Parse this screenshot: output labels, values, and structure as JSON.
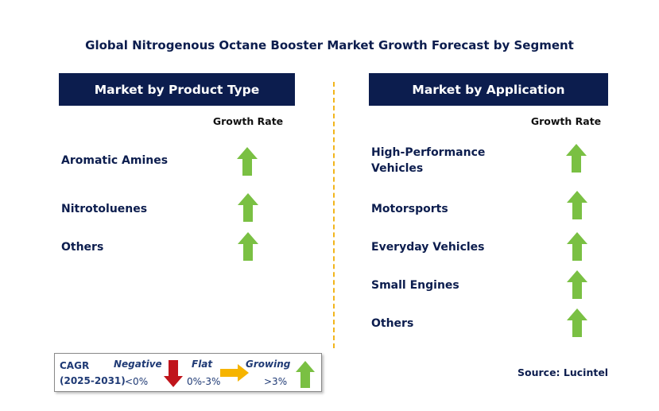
{
  "title": "Global Nitrogenous Octane Booster Market Growth Forecast by Segment",
  "left_panel": {
    "header": "Market by Product Type",
    "column_header": "Growth Rate",
    "rows": [
      {
        "label": "Aromatic Amines",
        "trend": "growing"
      },
      {
        "label": "Nitrotoluenes",
        "trend": "growing"
      },
      {
        "label": "Others",
        "trend": "growing"
      }
    ]
  },
  "right_panel": {
    "header": "Market by Application",
    "column_header": "Growth Rate",
    "rows": [
      {
        "label_line1": "High-Performance",
        "label_line2": "Vehicles",
        "trend": "growing"
      },
      {
        "label_line1": "Motorsports",
        "trend": "growing"
      },
      {
        "label_line1": "Everyday Vehicles",
        "trend": "growing"
      },
      {
        "label_line1": "Small Engines",
        "trend": "growing"
      },
      {
        "label_line1": "Others",
        "trend": "growing"
      }
    ]
  },
  "legend": {
    "cagr_label": "CAGR",
    "period": "(2025-2031)",
    "negative_label": "Negative",
    "negative_range": "<0%",
    "flat_label": "Flat",
    "flat_range": "0%-3%",
    "growing_label": "Growing",
    "growing_range": ">3%"
  },
  "source": "Source: Lucintel",
  "colors": {
    "navy": "#0c1d4e",
    "growing": "#7ac043",
    "negative": "#c0141b",
    "flat": "#f6b400",
    "divider": "#f2b51c"
  }
}
